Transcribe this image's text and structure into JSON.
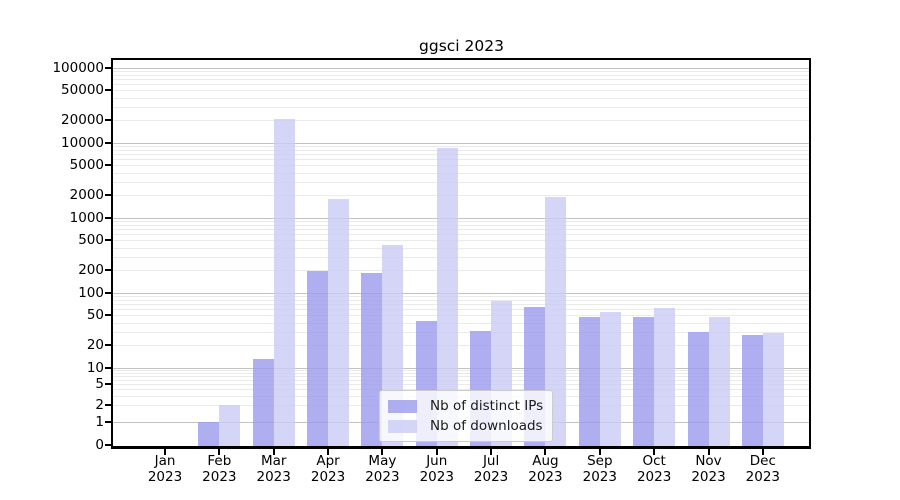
{
  "chart_data": {
    "type": "bar",
    "title": "ggsci 2023",
    "categories": [
      "Jan 2023",
      "Feb 2023",
      "Mar 2023",
      "Apr 2023",
      "May 2023",
      "Jun 2023",
      "Jul 2023",
      "Aug 2023",
      "Sep 2023",
      "Oct 2023",
      "Nov 2023",
      "Dec 2023"
    ],
    "month_labels": [
      "Jan",
      "Feb",
      "Mar",
      "Apr",
      "May",
      "Jun",
      "Jul",
      "Aug",
      "Sep",
      "Oct",
      "Nov",
      "Dec"
    ],
    "year_label": "2023",
    "series": [
      {
        "name": "Nb of distinct IPs",
        "color": "#9a9aec",
        "values": [
          0,
          1,
          13,
          195,
          185,
          42,
          31,
          65,
          47,
          47,
          30,
          27
        ]
      },
      {
        "name": "Nb of downloads",
        "color": "#cacaf6",
        "values": [
          0,
          2,
          21000,
          1750,
          430,
          8600,
          78,
          1900,
          55,
          62,
          47,
          29
        ]
      }
    ],
    "y_ticks": [
      0,
      1,
      2,
      5,
      10,
      20,
      50,
      100,
      200,
      500,
      1000,
      2000,
      5000,
      10000,
      20000,
      50000,
      100000
    ],
    "y_scale": "log (compressed below 10, linear 0-1)",
    "ylim": [
      0,
      150000
    ],
    "xlabel": "",
    "ylabel": "",
    "grid": true,
    "legend_position": "lower center",
    "bar_opacity": 0.8,
    "bar_group": "two bars per month, IPs left of tick, downloads right of tick"
  }
}
